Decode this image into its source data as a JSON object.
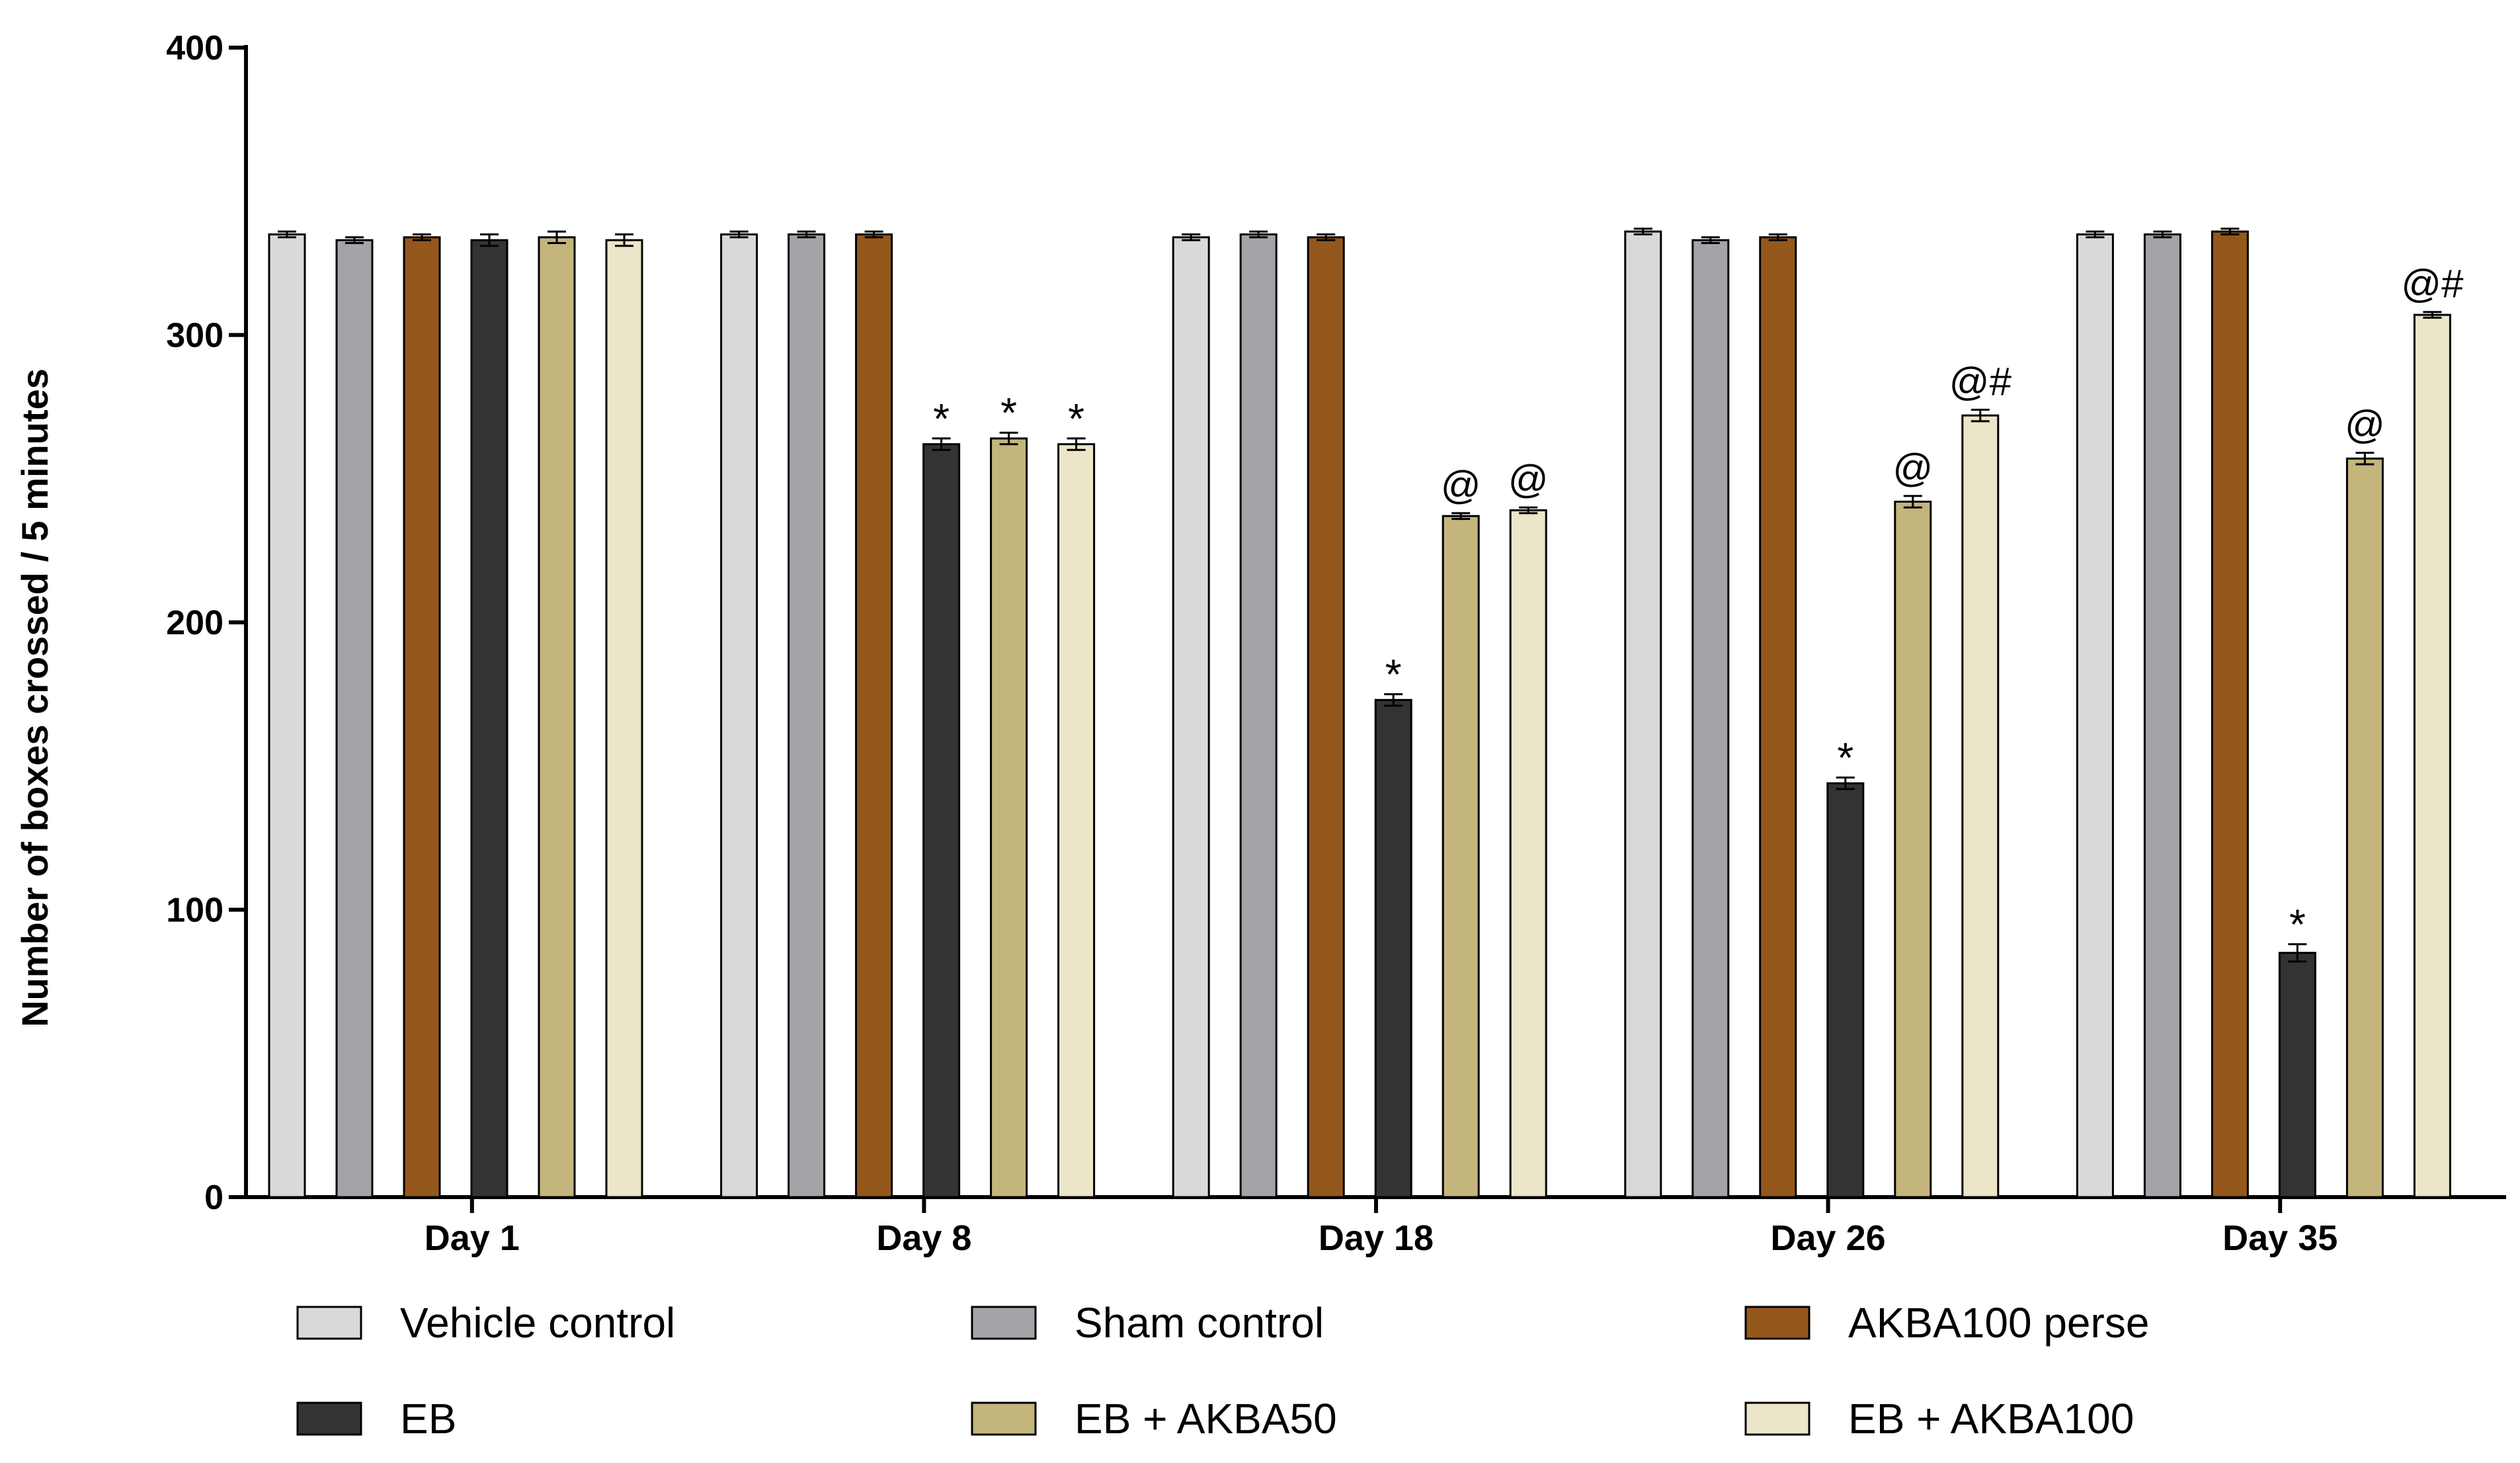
{
  "chart_data": {
    "type": "bar",
    "title": "",
    "xlabel": "",
    "ylabel": "Number of boxes crossed / 5 minutes",
    "ylim": [
      0,
      400
    ],
    "yticks": [
      0,
      100,
      200,
      300,
      400
    ],
    "categories": [
      "Day 1",
      "Day 8",
      "Day 18",
      "Day 26",
      "Day 35"
    ],
    "series": [
      {
        "name": "Vehicle control",
        "color": "#d9d9d9",
        "values": [
          335,
          335,
          334,
          336,
          335
        ],
        "errors": [
          1,
          1,
          1,
          1,
          1
        ],
        "annotations": [
          "",
          "",
          "",
          "",
          ""
        ]
      },
      {
        "name": "Sham control",
        "color": "#a3a3a8",
        "values": [
          333,
          335,
          335,
          333,
          335
        ],
        "errors": [
          1,
          1,
          1,
          1,
          1
        ],
        "annotations": [
          "",
          "",
          "",
          "",
          ""
        ]
      },
      {
        "name": "AKBA100 perse",
        "color": "#94581c",
        "values": [
          334,
          335,
          334,
          334,
          336
        ],
        "errors": [
          1,
          1,
          1,
          1,
          1
        ],
        "annotations": [
          "",
          "",
          "",
          "",
          ""
        ]
      },
      {
        "name": "EB",
        "color": "#333333",
        "values": [
          333,
          262,
          173,
          144,
          85
        ],
        "errors": [
          2,
          2,
          2,
          2,
          3
        ],
        "annotations": [
          "",
          "*",
          "*",
          "*",
          "*"
        ]
      },
      {
        "name": "EB + AKBA50",
        "color": "#c4b57c",
        "values": [
          334,
          264,
          237,
          242,
          257
        ],
        "errors": [
          2,
          2,
          1,
          2,
          2
        ],
        "annotations": [
          "",
          "*",
          "@",
          "@",
          "@"
        ]
      },
      {
        "name": "EB + AKBA100",
        "color": "#ebe5c9",
        "values": [
          333,
          262,
          239,
          272,
          307
        ],
        "errors": [
          2,
          2,
          1,
          2,
          1
        ],
        "annotations": [
          "",
          "*",
          "@",
          "@#",
          "@#"
        ]
      }
    ],
    "legend": {
      "placement": "bottom",
      "columns": 3
    }
  }
}
